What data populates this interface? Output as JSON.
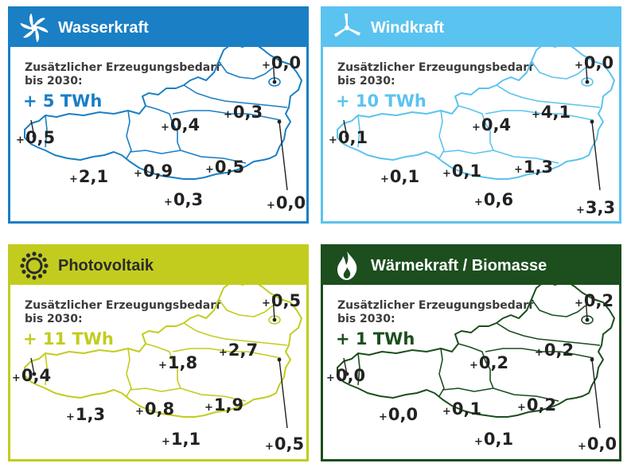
{
  "description_line1": "Zusätzlicher Erzeugungsbedarf",
  "description_line2": "bis 2030:",
  "panels": [
    {
      "title": "Wasserkraft",
      "icon": "water-turbine-icon",
      "color": "#1a7fc4",
      "header_text_color": "#ffffff",
      "total": "+ 5 TWh",
      "values": {
        "lower_austria": "0,3",
        "vienna": "0,0",
        "upper_austria": "0,4",
        "vorarlberg": "0,5",
        "tyrol": "2,1",
        "salzburg": "0,9",
        "styria": "0,5",
        "carinthia": "0,3",
        "burgenland": "0,0"
      }
    },
    {
      "title": "Windkraft",
      "icon": "wind-turbine-icon",
      "color": "#5bc3ef",
      "header_text_color": "#ffffff",
      "total": "+ 10 TWh",
      "values": {
        "lower_austria": "4,1",
        "vienna": "0,0",
        "upper_austria": "0,4",
        "vorarlberg": "0,1",
        "tyrol": "0,1",
        "salzburg": "0,1",
        "styria": "1,3",
        "carinthia": "0,6",
        "burgenland": "3,3"
      }
    },
    {
      "title": "Photovoltaik",
      "icon": "sun-icon",
      "color": "#c2cc1e",
      "header_text_color": "#2b2b2b",
      "total": "+ 11 TWh",
      "values": {
        "lower_austria": "2,7",
        "vienna": "0,5",
        "upper_austria": "1,8",
        "vorarlberg": "0,4",
        "tyrol": "1,3",
        "salzburg": "0,8",
        "styria": "1,9",
        "carinthia": "1,1",
        "burgenland": "0,5"
      }
    },
    {
      "title": "Wärmekraft / Biomasse",
      "icon": "flame-icon",
      "color": "#1c4e1e",
      "header_text_color": "#ffffff",
      "total": "+ 1 TWh",
      "values": {
        "lower_austria": "0,2",
        "vienna": "0,2",
        "upper_austria": "0,2",
        "vorarlberg": "0,0",
        "tyrol": "0,0",
        "salzburg": "0,1",
        "styria": "0,2",
        "carinthia": "0,1",
        "burgenland": "0,0"
      }
    }
  ]
}
